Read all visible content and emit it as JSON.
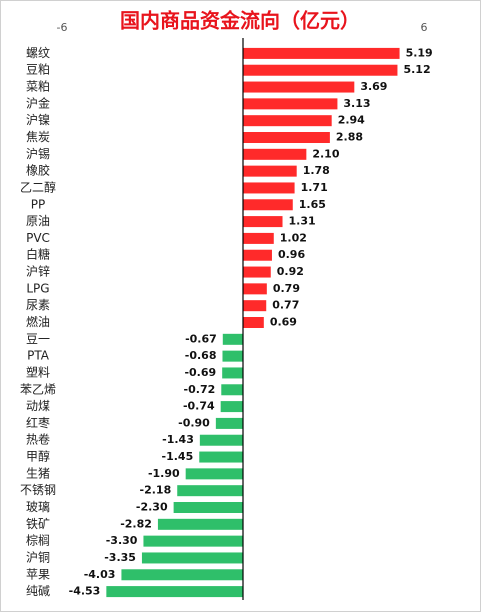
{
  "chart_data": {
    "type": "hbar",
    "title": "国内商品资金流向（亿元）",
    "categories": [
      "螺纹",
      "豆粕",
      "菜粕",
      "沪金",
      "沪镍",
      "焦炭",
      "沪锡",
      "橡胶",
      "乙二醇",
      "PP",
      "原油",
      "PVC",
      "白糖",
      "沪锌",
      "LPG",
      "尿素",
      "燃油",
      "豆一",
      "PTA",
      "塑料",
      "苯乙烯",
      "动煤",
      "红枣",
      "热卷",
      "甲醇",
      "生猪",
      "不锈钢",
      "玻璃",
      "铁矿",
      "棕榈",
      "沪铜",
      "苹果",
      "纯碱"
    ],
    "values": [
      5.19,
      5.12,
      3.69,
      3.13,
      2.94,
      2.88,
      2.1,
      1.78,
      1.71,
      1.65,
      1.31,
      1.02,
      0.96,
      0.92,
      0.79,
      0.77,
      0.69,
      -0.67,
      -0.68,
      -0.69,
      -0.72,
      -0.74,
      -0.9,
      -1.43,
      -1.45,
      -1.9,
      -2.18,
      -2.3,
      -2.82,
      -3.3,
      -3.35,
      -4.03,
      -4.53
    ],
    "value_labels": [
      "5.19",
      "5.12",
      "3.69",
      "3.13",
      "2.94",
      "2.88",
      "2.10",
      "1.78",
      "1.71",
      "1.65",
      "1.31",
      "1.02",
      "0.96",
      "0.92",
      "0.79",
      "0.77",
      "0.69",
      "-0.67",
      "-0.68",
      "-0.69",
      "-0.72",
      "-0.74",
      "-0.90",
      "-1.43",
      "-1.45",
      "-1.90",
      "-2.18",
      "-2.30",
      "-2.82",
      "-3.30",
      "-3.35",
      "-4.03",
      "-4.53"
    ],
    "positive_color": "#ff2a2a",
    "negative_color": "#2fbf6a",
    "xlim": [
      -6,
      6
    ],
    "xticks": [
      -6,
      6
    ],
    "grid": false
  }
}
